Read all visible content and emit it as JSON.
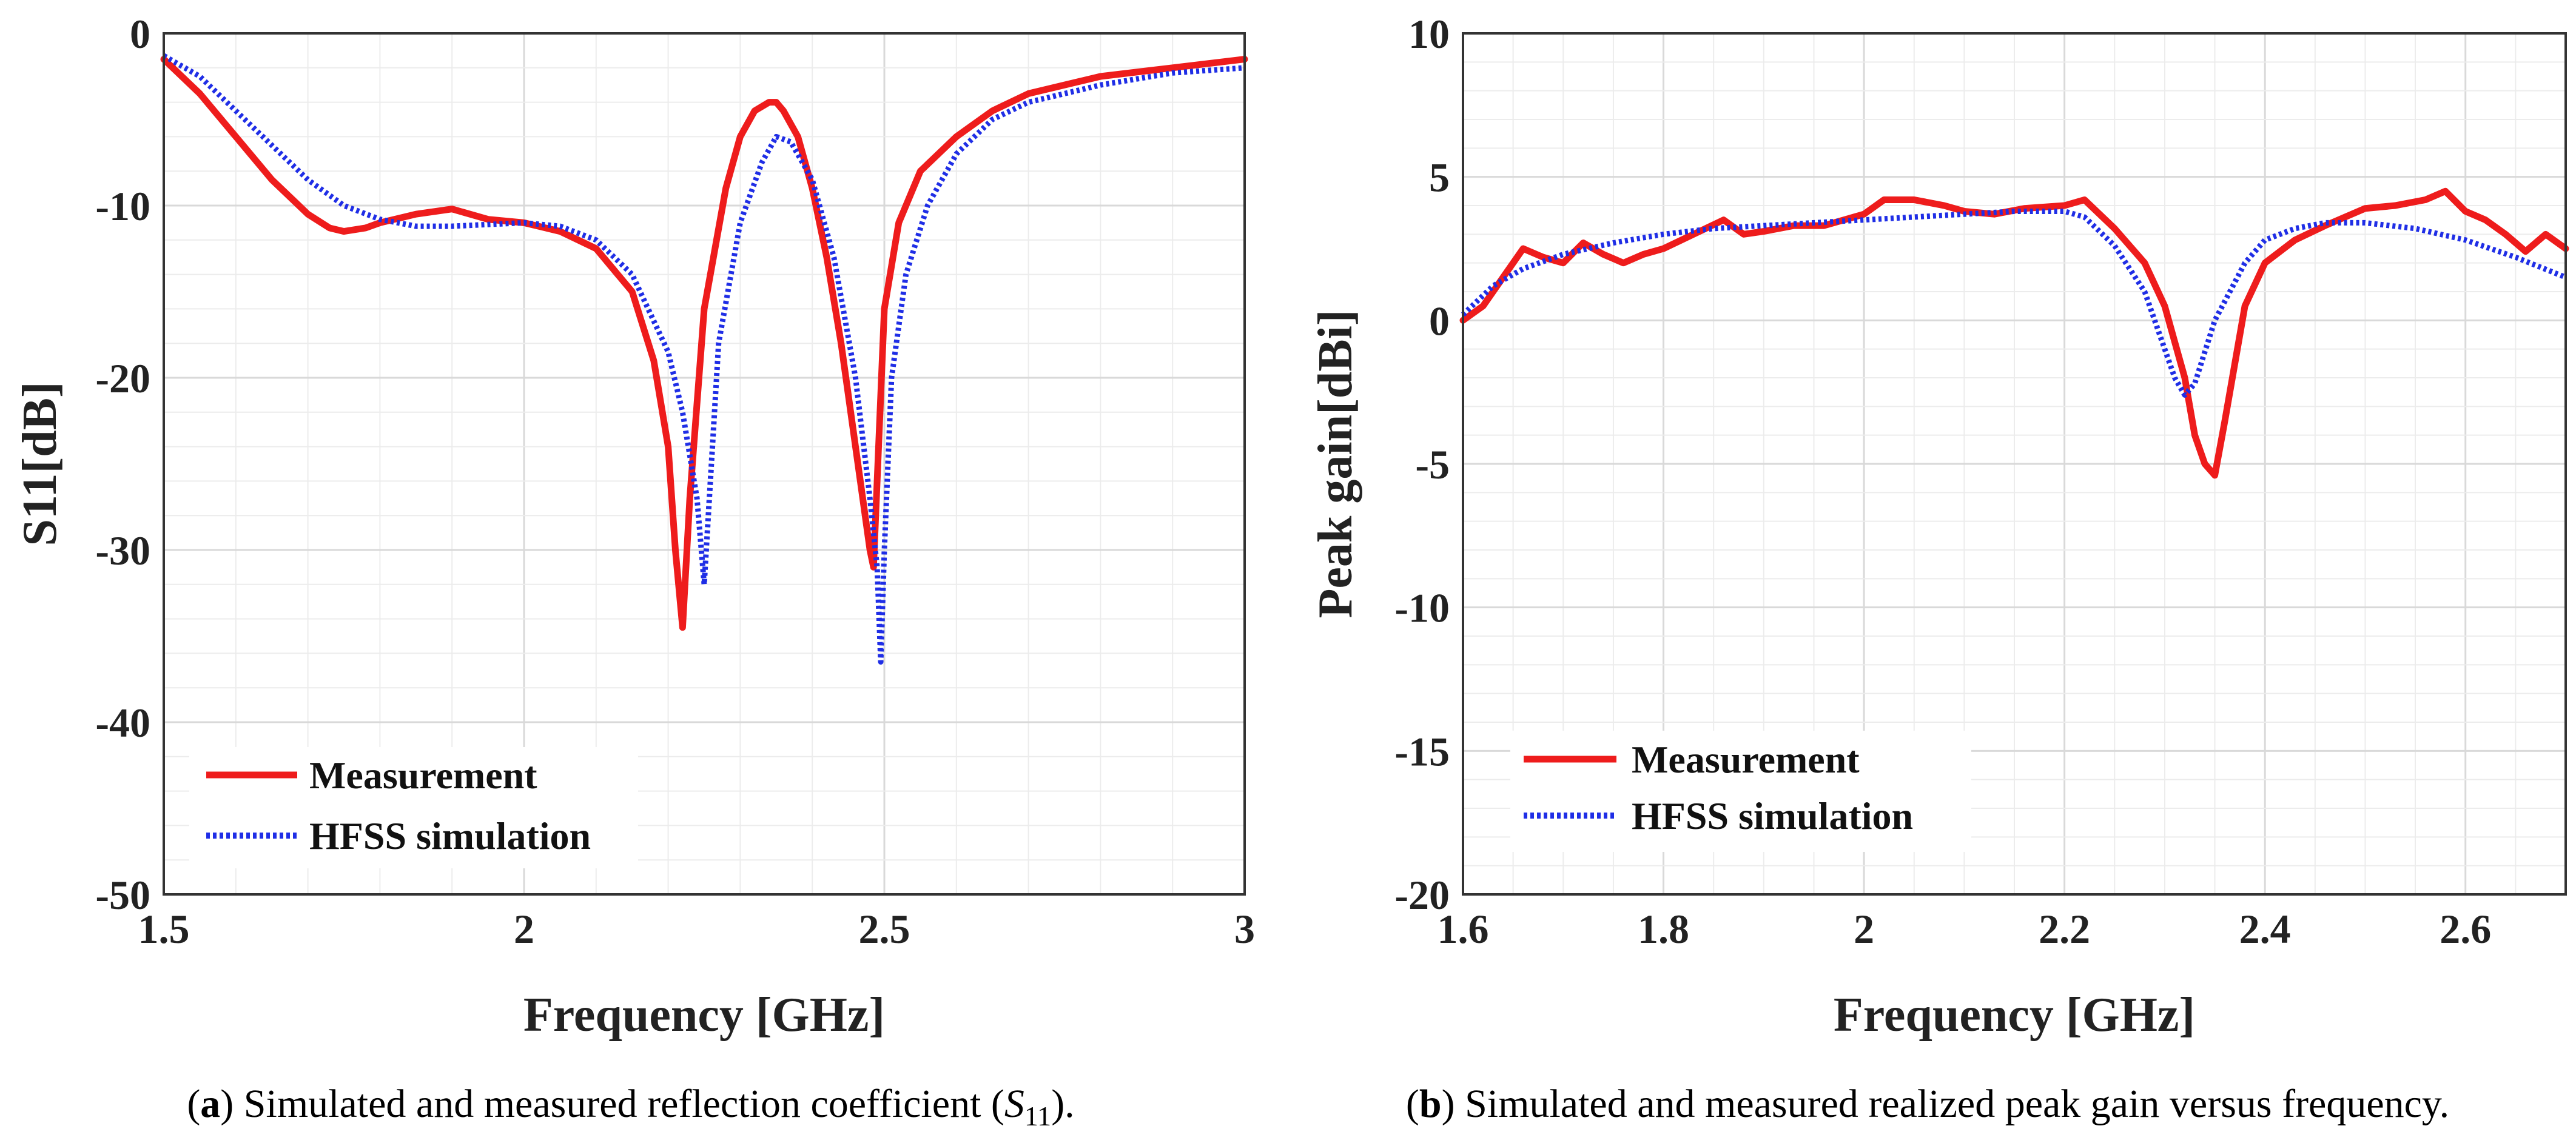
{
  "chart_data": [
    {
      "id": "a",
      "type": "line",
      "xlabel": "Frequency [GHz]",
      "ylabel": "S11[dB]",
      "xlim": [
        1.5,
        3
      ],
      "ylim": [
        -50,
        0
      ],
      "xticks": [
        1.5,
        2,
        2.5,
        3
      ],
      "xtick_labels": [
        "1.5",
        "2",
        "2.5",
        "3"
      ],
      "yticks": [
        0,
        -10,
        -20,
        -30,
        -40,
        -50
      ],
      "ytick_labels": [
        "0",
        "-10",
        "-20",
        "-30",
        "-40",
        "-50"
      ],
      "xminor": 0.1,
      "yminor": 2,
      "grid": true,
      "legend_position": "bottom-left",
      "series": [
        {
          "name": "Measurement",
          "color": "#ee1c1c",
          "style": "solid",
          "x": [
            1.5,
            1.55,
            1.6,
            1.65,
            1.7,
            1.73,
            1.75,
            1.78,
            1.8,
            1.85,
            1.9,
            1.95,
            2.0,
            2.05,
            2.1,
            2.15,
            2.18,
            2.2,
            2.21,
            2.22,
            2.23,
            2.25,
            2.28,
            2.3,
            2.32,
            2.34,
            2.35,
            2.36,
            2.38,
            2.4,
            2.42,
            2.44,
            2.46,
            2.47,
            2.48,
            2.485,
            2.49,
            2.5,
            2.52,
            2.55,
            2.6,
            2.65,
            2.7,
            2.8,
            2.9,
            3.0
          ],
          "y": [
            -1.5,
            -3.5,
            -6,
            -8.5,
            -10.5,
            -11.3,
            -11.5,
            -11.3,
            -11,
            -10.5,
            -10.2,
            -10.8,
            -11,
            -11.5,
            -12.5,
            -15,
            -19,
            -24,
            -30,
            -34.5,
            -27,
            -16,
            -9,
            -6,
            -4.5,
            -4,
            -4,
            -4.5,
            -6,
            -9,
            -13,
            -18,
            -24,
            -27,
            -30,
            -31,
            -26,
            -16,
            -11,
            -8,
            -6,
            -4.5,
            -3.5,
            -2.5,
            -2,
            -1.5
          ]
        },
        {
          "name": "HFSS simulation",
          "color": "#1f2ee6",
          "style": "dotted",
          "x": [
            1.5,
            1.55,
            1.6,
            1.65,
            1.7,
            1.75,
            1.8,
            1.85,
            1.9,
            1.95,
            2.0,
            2.05,
            2.1,
            2.15,
            2.2,
            2.22,
            2.24,
            2.25,
            2.26,
            2.27,
            2.3,
            2.33,
            2.35,
            2.37,
            2.4,
            2.43,
            2.46,
            2.48,
            2.49,
            2.495,
            2.5,
            2.51,
            2.53,
            2.56,
            2.6,
            2.65,
            2.7,
            2.8,
            2.9,
            3.0
          ],
          "y": [
            -1.3,
            -2.5,
            -4.5,
            -6.5,
            -8.5,
            -10,
            -10.8,
            -11.2,
            -11.2,
            -11.1,
            -11,
            -11.2,
            -12,
            -14,
            -18.5,
            -22,
            -27,
            -32,
            -25,
            -18,
            -11,
            -7.5,
            -6,
            -6.3,
            -8.5,
            -13,
            -20,
            -27,
            -31,
            -36.5,
            -30,
            -20,
            -14,
            -10,
            -7,
            -5,
            -4,
            -3,
            -2.3,
            -2
          ]
        }
      ]
    },
    {
      "id": "b",
      "type": "line",
      "xlabel": "Frequency [GHz]",
      "ylabel": "Peak gain[dBi]",
      "xlim": [
        1.6,
        2.7
      ],
      "ylim": [
        -20,
        10
      ],
      "xticks": [
        1.6,
        1.8,
        2.0,
        2.2,
        2.4,
        2.6
      ],
      "xtick_labels": [
        "1.6",
        "1.8",
        "2",
        "2.2",
        "2.4",
        "2.6"
      ],
      "yticks": [
        10,
        5,
        0,
        -5,
        -10,
        -15,
        -20
      ],
      "ytick_labels": [
        "10",
        "5",
        "0",
        "-5",
        "-10",
        "-15",
        "-20"
      ],
      "xminor": 0.05,
      "yminor": 1,
      "grid": true,
      "legend_position": "bottom-left",
      "series": [
        {
          "name": "Measurement",
          "color": "#ee1c1c",
          "style": "solid",
          "x": [
            1.6,
            1.62,
            1.64,
            1.66,
            1.68,
            1.7,
            1.72,
            1.74,
            1.76,
            1.78,
            1.8,
            1.83,
            1.86,
            1.88,
            1.9,
            1.93,
            1.96,
            2.0,
            2.02,
            2.05,
            2.08,
            2.1,
            2.13,
            2.16,
            2.2,
            2.22,
            2.25,
            2.28,
            2.3,
            2.32,
            2.33,
            2.34,
            2.35,
            2.36,
            2.38,
            2.4,
            2.43,
            2.46,
            2.5,
            2.53,
            2.56,
            2.58,
            2.6,
            2.62,
            2.64,
            2.66,
            2.68,
            2.7
          ],
          "y": [
            0,
            0.5,
            1.5,
            2.5,
            2.2,
            2.0,
            2.7,
            2.3,
            2.0,
            2.3,
            2.5,
            3.0,
            3.5,
            3.0,
            3.1,
            3.3,
            3.3,
            3.7,
            4.2,
            4.2,
            4.0,
            3.8,
            3.7,
            3.9,
            4.0,
            4.2,
            3.2,
            2.0,
            0.5,
            -2.0,
            -4.0,
            -5.0,
            -5.4,
            -3.5,
            0.5,
            2.0,
            2.8,
            3.3,
            3.9,
            4.0,
            4.2,
            4.5,
            3.8,
            3.5,
            3.0,
            2.4,
            3.0,
            2.5
          ]
        },
        {
          "name": "HFSS simulation",
          "color": "#1f2ee6",
          "style": "dotted",
          "x": [
            1.6,
            1.63,
            1.66,
            1.7,
            1.75,
            1.8,
            1.85,
            1.9,
            1.95,
            2.0,
            2.05,
            2.1,
            2.15,
            2.2,
            2.22,
            2.25,
            2.28,
            2.3,
            2.31,
            2.32,
            2.33,
            2.35,
            2.38,
            2.4,
            2.43,
            2.46,
            2.5,
            2.55,
            2.6,
            2.65,
            2.7
          ],
          "y": [
            0.2,
            1.2,
            1.8,
            2.3,
            2.7,
            3.0,
            3.2,
            3.3,
            3.4,
            3.5,
            3.6,
            3.7,
            3.8,
            3.8,
            3.6,
            2.6,
            1.0,
            -1.0,
            -2.0,
            -2.6,
            -2.2,
            0.0,
            2.0,
            2.8,
            3.2,
            3.4,
            3.4,
            3.2,
            2.8,
            2.2,
            1.5
          ]
        }
      ]
    }
  ],
  "captions": {
    "a": {
      "label": "a",
      "open": "(",
      "close": ")",
      "text": " Simulated and measured reflection coefficient (",
      "var": "S",
      "sub": "11",
      "end": ")."
    },
    "b": {
      "label": "b",
      "open": "(",
      "close": ")",
      "text": " Simulated and measured realized peak gain versus frequency."
    }
  }
}
